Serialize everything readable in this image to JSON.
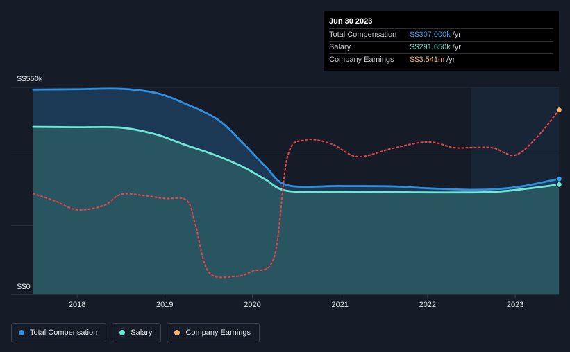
{
  "tooltip": {
    "date": "Jun 30 2023",
    "rows": [
      {
        "name": "Total Compensation",
        "value": "S$307.000k",
        "unit": "/yr",
        "color": "#3aa0f0"
      },
      {
        "name": "Salary",
        "value": "S$291.650k",
        "unit": "/yr",
        "color": "#6fe6d6"
      },
      {
        "name": "Company Earnings",
        "value": "S$3.541m",
        "unit": "/yr",
        "color": "#f3b56b"
      }
    ]
  },
  "legend": [
    {
      "label": "Total Compensation",
      "color": "#2e8fe0"
    },
    {
      "label": "Salary",
      "color": "#6fe6d6"
    },
    {
      "label": "Company Earnings",
      "color": "#f3b56b"
    }
  ],
  "chart_data": {
    "type": "area",
    "ylim": [
      0,
      550
    ],
    "y_tick_labels": [
      "S$0",
      "S$550k"
    ],
    "x_ticks": [
      2018,
      2019,
      2020,
      2021,
      2022,
      2023
    ],
    "x_tick_labels": [
      "2018",
      "2019",
      "2020",
      "2021",
      "2022",
      "2023"
    ],
    "xlim": [
      2017.5,
      2023.5
    ],
    "forecast_start": 2022.5,
    "grid": true,
    "legend_position": "bottom-left",
    "series": [
      {
        "name": "Total Compensation",
        "color": "#2e8fe0",
        "x": [
          2017.5,
          2018.0,
          2018.5,
          2018.9,
          2019.2,
          2019.6,
          2019.9,
          2020.15,
          2020.4,
          2021.0,
          2021.6,
          2022.0,
          2022.5,
          2022.8,
          2023.1,
          2023.5
        ],
        "y": [
          544,
          545,
          546,
          535,
          510,
          465,
          400,
          340,
          290,
          288,
          287,
          282,
          278,
          280,
          288,
          307
        ]
      },
      {
        "name": "Salary",
        "color": "#6fe6d6",
        "x": [
          2017.5,
          2018.0,
          2018.5,
          2018.9,
          2019.2,
          2019.6,
          2019.9,
          2020.15,
          2020.4,
          2021.0,
          2021.6,
          2022.0,
          2022.5,
          2022.8,
          2023.1,
          2023.5
        ],
        "y": [
          445,
          444,
          443,
          425,
          400,
          368,
          338,
          305,
          275,
          273,
          272,
          271,
          271,
          273,
          280,
          292
        ]
      },
      {
        "name": "Company Earnings",
        "color": "#e0464a",
        "dashed": true,
        "x": [
          2017.5,
          2017.75,
          2018.0,
          2018.3,
          2018.5,
          2018.75,
          2019.0,
          2019.25,
          2019.35,
          2019.5,
          2019.8,
          2020.0,
          2020.25,
          2020.4,
          2020.6,
          2020.9,
          2021.2,
          2021.6,
          2022.0,
          2022.3,
          2022.5,
          2022.75,
          2023.0,
          2023.25,
          2023.5
        ],
        "y": [
          268,
          248,
          225,
          236,
          266,
          263,
          255,
          250,
          185,
          60,
          48,
          62,
          100,
          365,
          410,
          400,
          366,
          388,
          405,
          390,
          390,
          389,
          370,
          418,
          490
        ]
      }
    ]
  }
}
